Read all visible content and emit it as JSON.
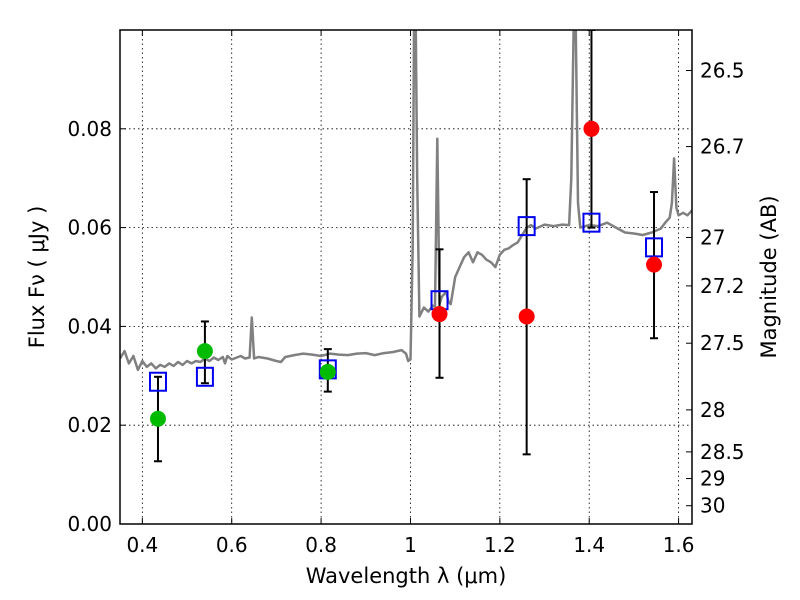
{
  "chart_data": {
    "type": "scatter",
    "title": "",
    "xlabel": "Wavelength  λ (μm)",
    "ylabel": "Flux  Fν  ( μJy )",
    "y2label": "Magnitude (AB)",
    "xlim": [
      0.35,
      1.63
    ],
    "ylim": [
      0,
      0.1
    ],
    "grid": true,
    "x_ticks": [
      0.4,
      0.6,
      0.8,
      1.0,
      1.2,
      1.4,
      1.6
    ],
    "x_tick_labels": [
      "0.4",
      "0.6",
      "0.8",
      "1",
      "1.2",
      "1.4",
      "1.6"
    ],
    "y_ticks": [
      0.0,
      0.02,
      0.04,
      0.06,
      0.08
    ],
    "y_tick_labels": [
      "0.00",
      "0.02",
      "0.04",
      "0.06",
      "0.08"
    ],
    "y2_ticks": [
      {
        "label": "26.5",
        "flux": 0.0918
      },
      {
        "label": "26.7",
        "flux": 0.0764
      },
      {
        "label": "27",
        "flux": 0.058
      },
      {
        "label": "27.2",
        "flux": 0.0482
      },
      {
        "label": "27.5",
        "flux": 0.0366
      },
      {
        "label": "28",
        "flux": 0.0231
      },
      {
        "label": "28.5",
        "flux": 0.0146
      },
      {
        "label": "29",
        "flux": 0.0092
      },
      {
        "label": "30",
        "flux": 0.0037
      }
    ],
    "series": [
      {
        "kind": "line",
        "color": "#808080",
        "points": [
          [
            0.35,
            0.0335
          ],
          [
            0.36,
            0.035
          ],
          [
            0.37,
            0.0325
          ],
          [
            0.38,
            0.034
          ],
          [
            0.39,
            0.0312
          ],
          [
            0.4,
            0.033
          ],
          [
            0.41,
            0.0318
          ],
          [
            0.42,
            0.0325
          ],
          [
            0.43,
            0.0315
          ],
          [
            0.44,
            0.0322
          ],
          [
            0.45,
            0.0318
          ],
          [
            0.46,
            0.0325
          ],
          [
            0.47,
            0.032
          ],
          [
            0.48,
            0.0328
          ],
          [
            0.49,
            0.0322
          ],
          [
            0.5,
            0.033
          ],
          [
            0.51,
            0.0325
          ],
          [
            0.52,
            0.033
          ],
          [
            0.53,
            0.0328
          ],
          [
            0.54,
            0.0335
          ],
          [
            0.55,
            0.033
          ],
          [
            0.56,
            0.0337
          ],
          [
            0.57,
            0.0332
          ],
          [
            0.58,
            0.0338
          ],
          [
            0.585,
            0.0325
          ],
          [
            0.59,
            0.034
          ],
          [
            0.6,
            0.0333
          ],
          [
            0.62,
            0.034
          ],
          [
            0.63,
            0.0335
          ],
          [
            0.64,
            0.0337
          ],
          [
            0.645,
            0.0418
          ],
          [
            0.65,
            0.0335
          ],
          [
            0.66,
            0.0338
          ],
          [
            0.68,
            0.0335
          ],
          [
            0.7,
            0.033
          ],
          [
            0.71,
            0.0328
          ],
          [
            0.72,
            0.0338
          ],
          [
            0.74,
            0.0342
          ],
          [
            0.76,
            0.0345
          ],
          [
            0.78,
            0.0343
          ],
          [
            0.8,
            0.034
          ],
          [
            0.82,
            0.0345
          ],
          [
            0.84,
            0.0343
          ],
          [
            0.86,
            0.0342
          ],
          [
            0.88,
            0.0345
          ],
          [
            0.9,
            0.0346
          ],
          [
            0.92,
            0.0342
          ],
          [
            0.94,
            0.0346
          ],
          [
            0.96,
            0.0348
          ],
          [
            0.98,
            0.0352
          ],
          [
            0.99,
            0.0345
          ],
          [
            0.995,
            0.033
          ],
          [
            1.0,
            0.0333
          ],
          [
            1.005,
            0.056
          ],
          [
            1.008,
            0.1
          ],
          [
            1.012,
            0.1
          ],
          [
            1.015,
            0.07
          ],
          [
            1.02,
            0.042
          ],
          [
            1.03,
            0.0438
          ],
          [
            1.04,
            0.043
          ],
          [
            1.05,
            0.0442
          ],
          [
            1.055,
            0.044
          ],
          [
            1.06,
            0.078
          ],
          [
            1.065,
            0.0445
          ],
          [
            1.07,
            0.046
          ],
          [
            1.08,
            0.047
          ],
          [
            1.085,
            0.045
          ],
          [
            1.09,
            0.0445
          ],
          [
            1.1,
            0.05
          ],
          [
            1.11,
            0.052
          ],
          [
            1.12,
            0.054
          ],
          [
            1.13,
            0.055
          ],
          [
            1.14,
            0.053
          ],
          [
            1.15,
            0.055
          ],
          [
            1.16,
            0.0545
          ],
          [
            1.17,
            0.0535
          ],
          [
            1.18,
            0.053
          ],
          [
            1.19,
            0.052
          ],
          [
            1.2,
            0.0545
          ],
          [
            1.21,
            0.0555
          ],
          [
            1.22,
            0.0558
          ],
          [
            1.23,
            0.0565
          ],
          [
            1.24,
            0.057
          ],
          [
            1.25,
            0.0585
          ],
          [
            1.26,
            0.06
          ],
          [
            1.27,
            0.0605
          ],
          [
            1.28,
            0.0598
          ],
          [
            1.29,
            0.0602
          ],
          [
            1.3,
            0.0606
          ],
          [
            1.32,
            0.0603
          ],
          [
            1.34,
            0.0606
          ],
          [
            1.355,
            0.0605
          ],
          [
            1.36,
            0.07
          ],
          [
            1.365,
            0.1
          ],
          [
            1.37,
            0.1
          ],
          [
            1.375,
            0.065
          ],
          [
            1.38,
            0.06
          ],
          [
            1.4,
            0.0605
          ],
          [
            1.42,
            0.0603
          ],
          [
            1.44,
            0.061
          ],
          [
            1.46,
            0.06
          ],
          [
            1.48,
            0.059
          ],
          [
            1.5,
            0.0588
          ],
          [
            1.52,
            0.0585
          ],
          [
            1.54,
            0.059
          ],
          [
            1.56,
            0.0598
          ],
          [
            1.57,
            0.061
          ],
          [
            1.58,
            0.062
          ],
          [
            1.585,
            0.065
          ],
          [
            1.59,
            0.074
          ],
          [
            1.595,
            0.064
          ],
          [
            1.6,
            0.0625
          ],
          [
            1.61,
            0.063
          ],
          [
            1.62,
            0.0625
          ],
          [
            1.63,
            0.0635
          ]
        ]
      },
      {
        "kind": "errorbars",
        "color": "#000000",
        "bars": [
          [
            0.435,
            0.0127,
            0.0298
          ],
          [
            0.54,
            0.0285,
            0.041
          ],
          [
            0.815,
            0.0268,
            0.0354
          ],
          [
            1.065,
            0.0296,
            0.0556
          ],
          [
            1.26,
            0.0141,
            0.0698
          ],
          [
            1.405,
            0.06,
            0.1
          ],
          [
            1.545,
            0.0376,
            0.0672
          ]
        ]
      },
      {
        "kind": "squares",
        "color": "#0000ee",
        "points": [
          [
            0.435,
            0.0288
          ],
          [
            0.54,
            0.0298
          ],
          [
            0.815,
            0.0313
          ],
          [
            1.065,
            0.0453
          ],
          [
            1.26,
            0.0603
          ],
          [
            1.405,
            0.061
          ],
          [
            1.545,
            0.056
          ]
        ]
      },
      {
        "kind": "dots",
        "color": "#ff0000",
        "points": [
          [
            1.065,
            0.0425
          ],
          [
            1.26,
            0.042
          ],
          [
            1.405,
            0.08
          ],
          [
            1.545,
            0.0525
          ]
        ]
      },
      {
        "kind": "dots",
        "color": "#00bb00",
        "points": [
          [
            0.435,
            0.0213
          ],
          [
            0.54,
            0.035
          ],
          [
            0.815,
            0.0308
          ]
        ]
      }
    ]
  }
}
